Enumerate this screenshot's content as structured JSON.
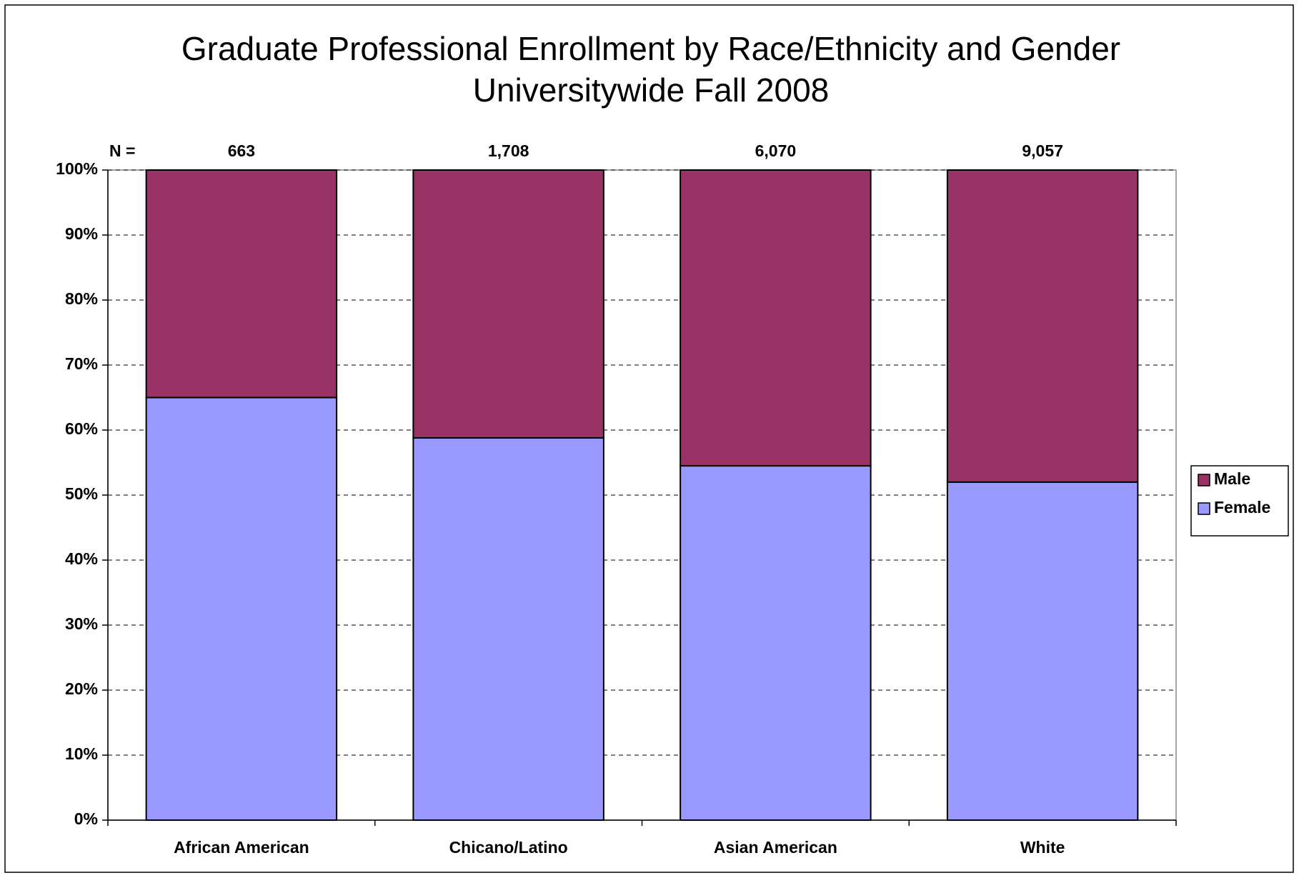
{
  "chart_data": {
    "type": "stacked_bar_100",
    "title": "Graduate Professional Enrollment by Race/Ethnicity and Gender",
    "subtitle": "Universitywide Fall 2008",
    "categories": [
      "African American",
      "Chicano/Latino",
      "Asian American",
      "White"
    ],
    "series": [
      {
        "name": "Female",
        "color": "#9999ff",
        "values": [
          65,
          58.8,
          54.5,
          52
        ]
      },
      {
        "name": "Male",
        "color": "#993366",
        "values": [
          35,
          41.2,
          45.5,
          48
        ]
      }
    ],
    "annotations": {
      "label": "N =",
      "values": [
        663,
        1708,
        6070,
        9057
      ],
      "value_labels": [
        "663",
        "1,708",
        "6,070",
        "9,057"
      ]
    },
    "ylim": [
      0,
      100
    ],
    "yticks": [
      {
        "value": 0,
        "label": "0%"
      },
      {
        "value": 10,
        "label": "10%"
      },
      {
        "value": 20,
        "label": "20%"
      },
      {
        "value": 30,
        "label": "30%"
      },
      {
        "value": 40,
        "label": "40%"
      },
      {
        "value": 50,
        "label": "50%"
      },
      {
        "value": 60,
        "label": "60%"
      },
      {
        "value": 70,
        "label": "70%"
      },
      {
        "value": 80,
        "label": "80%"
      },
      {
        "value": 90,
        "label": "90%"
      },
      {
        "value": 100,
        "label": "100%"
      }
    ],
    "grid": true,
    "legend": "right"
  }
}
